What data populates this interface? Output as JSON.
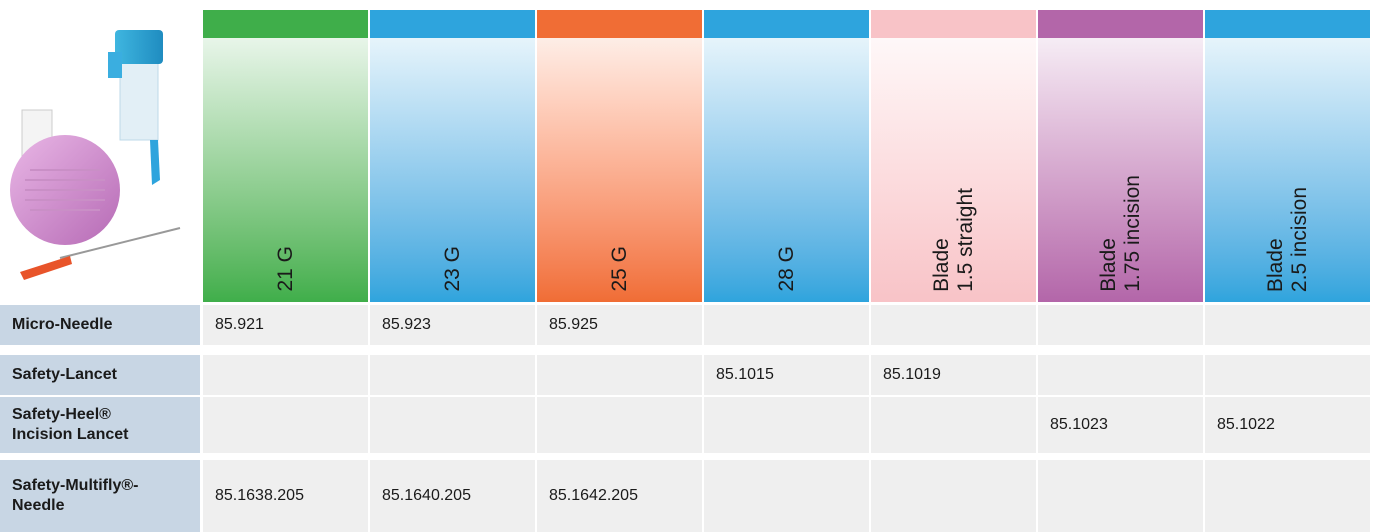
{
  "header": {
    "columns": [
      {
        "lines": [
          "21 G"
        ],
        "color": "#3fae4a"
      },
      {
        "lines": [
          "23 G"
        ],
        "color": "#2ea4dd"
      },
      {
        "lines": [
          "25 G"
        ],
        "color": "#f06d35"
      },
      {
        "lines": [
          "28 G"
        ],
        "color": "#2ea4dd"
      },
      {
        "lines": [
          "Blade",
          "1.5 straight"
        ],
        "color": "#f8c3c7"
      },
      {
        "lines": [
          "Blade",
          "1.75 incision"
        ],
        "color": "#b366a9"
      },
      {
        "lines": [
          "Blade",
          "2.5 incision"
        ],
        "color": "#2ea4dd"
      }
    ]
  },
  "table": {
    "rows": [
      {
        "label": [
          "Micro-Needle"
        ],
        "cells": [
          "85.921",
          "85.923",
          "85.925",
          null,
          null,
          null,
          null
        ]
      },
      {
        "label": [
          "Safety-Lancet"
        ],
        "cells": [
          null,
          null,
          null,
          "85.1015",
          "85.1019",
          null,
          null
        ]
      },
      {
        "label": [
          "Safety-Heel®",
          "Incision Lancet"
        ],
        "cells": [
          null,
          null,
          null,
          null,
          null,
          "85.1023",
          "85.1022"
        ]
      },
      {
        "label": [
          "Safety-Multifly®-",
          "Needle"
        ],
        "cells": [
          "85.1638.205",
          "85.1640.205",
          "85.1642.205",
          null,
          null,
          null,
          null
        ]
      }
    ]
  }
}
